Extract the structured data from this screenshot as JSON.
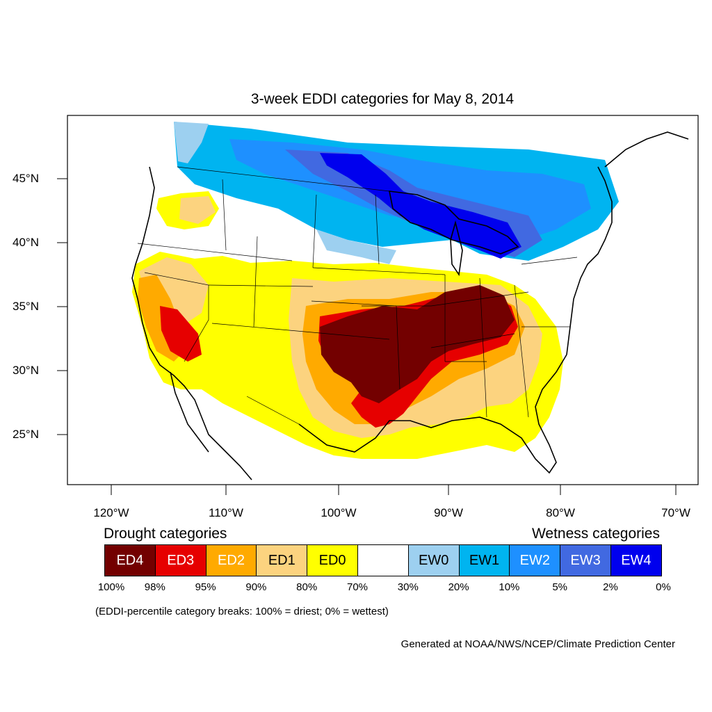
{
  "title": "3-week EDDI categories for May 8, 2014",
  "legend": {
    "drought_heading": "Drought categories",
    "wetness_heading": "Wetness categories",
    "categories": [
      {
        "label": "ED4",
        "color": "#730000",
        "text_color": "#ffffff"
      },
      {
        "label": "ED3",
        "color": "#e60000",
        "text_color": "#ffffff"
      },
      {
        "label": "ED2",
        "color": "#ffaa00",
        "text_color": "#ffffff"
      },
      {
        "label": "ED1",
        "color": "#fcd37f",
        "text_color": "#000000"
      },
      {
        "label": "ED0",
        "color": "#ffff00",
        "text_color": "#000000"
      },
      {
        "label": "",
        "color": "#ffffff",
        "text_color": "#000000"
      },
      {
        "label": "EW0",
        "color": "#9dd0f0",
        "text_color": "#000000"
      },
      {
        "label": "EW1",
        "color": "#00b4f0",
        "text_color": "#000000"
      },
      {
        "label": "EW2",
        "color": "#1e90ff",
        "text_color": "#ffffff"
      },
      {
        "label": "EW3",
        "color": "#4169e1",
        "text_color": "#ffffff"
      },
      {
        "label": "EW4",
        "color": "#0000ee",
        "text_color": "#ffffff"
      }
    ],
    "breaks": [
      "100%",
      "98%",
      "95%",
      "90%",
      "80%",
      "70%",
      "30%",
      "20%",
      "10%",
      "5%",
      "2%",
      "0%"
    ]
  },
  "note": "(EDDI-percentile category breaks: 100% = driest; 0% = wettest)",
  "credit": "Generated at NOAA/NWS/NCEP/Climate Prediction Center",
  "axes": {
    "lon_labels": [
      "120°W",
      "110°W",
      "100°W",
      "90°W",
      "80°W",
      "70°W"
    ],
    "lat_labels": [
      "45°N",
      "40°N",
      "35°N",
      "30°N",
      "25°N"
    ]
  }
}
